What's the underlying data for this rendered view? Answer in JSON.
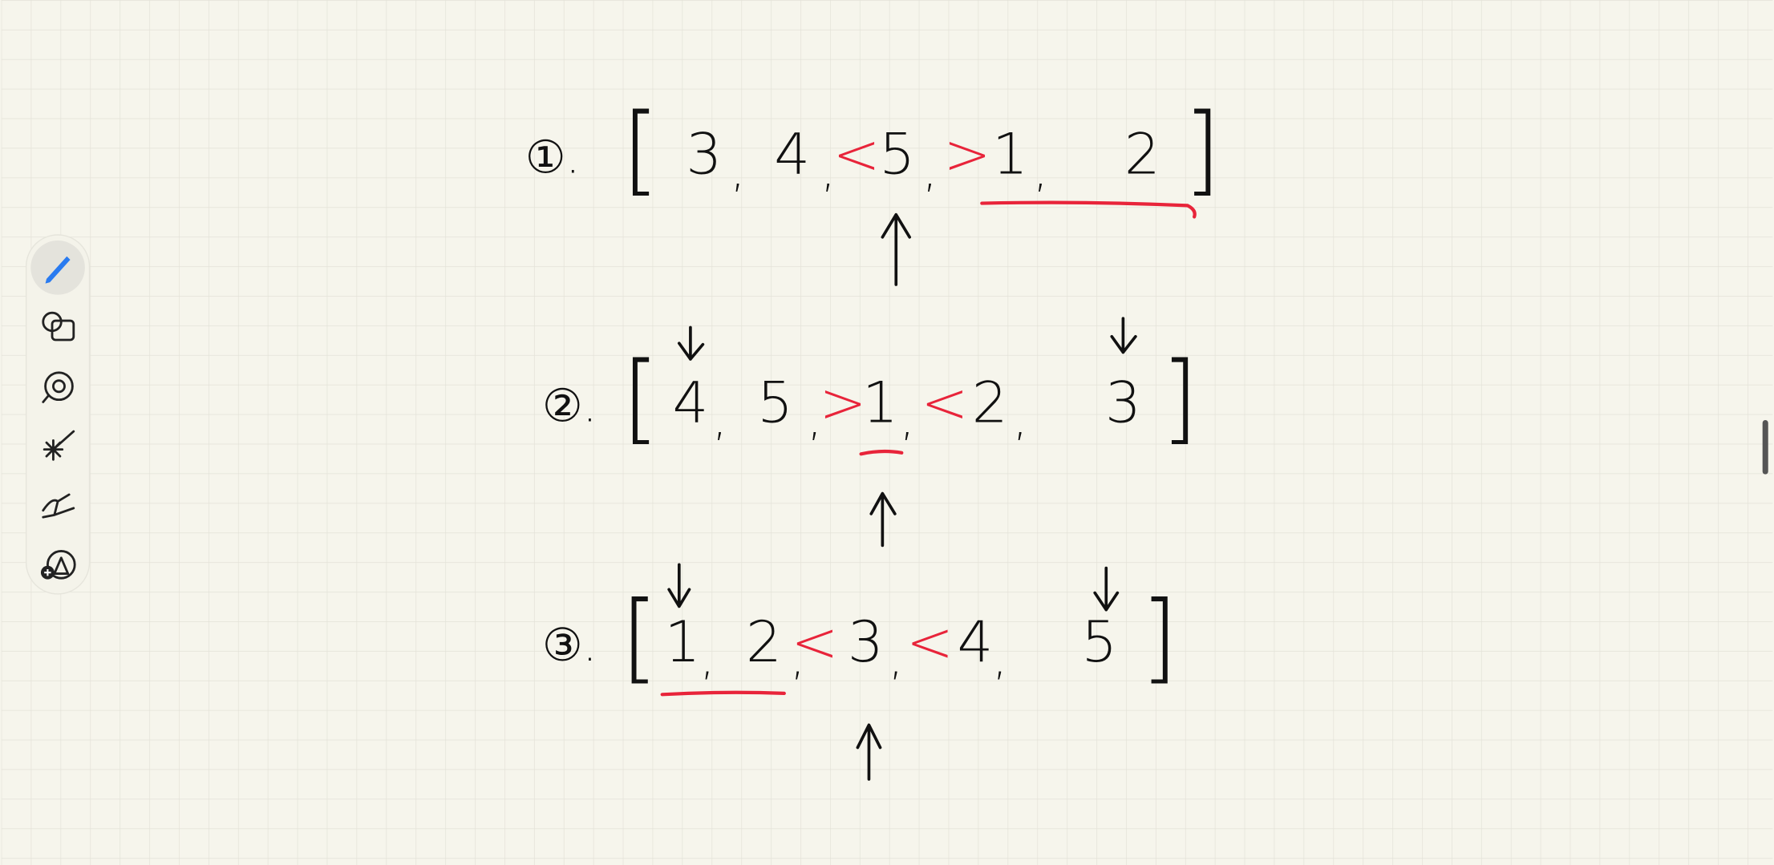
{
  "rows": [
    {
      "label": "①.",
      "items": [
        "[",
        "3",
        ",",
        "4",
        ",",
        "<",
        "5",
        ",",
        ">",
        "1",
        ",",
        "2",
        "]"
      ]
    },
    {
      "label": "②.",
      "items": [
        "[",
        "4",
        ",",
        "5",
        ",",
        ">",
        "1",
        ",",
        "<",
        "2",
        ",",
        "3",
        "]"
      ]
    },
    {
      "label": "③.",
      "items": [
        "[",
        "1",
        ",",
        "2",
        ",",
        "<",
        "3",
        ",",
        "<",
        "4",
        ",",
        "5",
        "]"
      ]
    }
  ]
}
